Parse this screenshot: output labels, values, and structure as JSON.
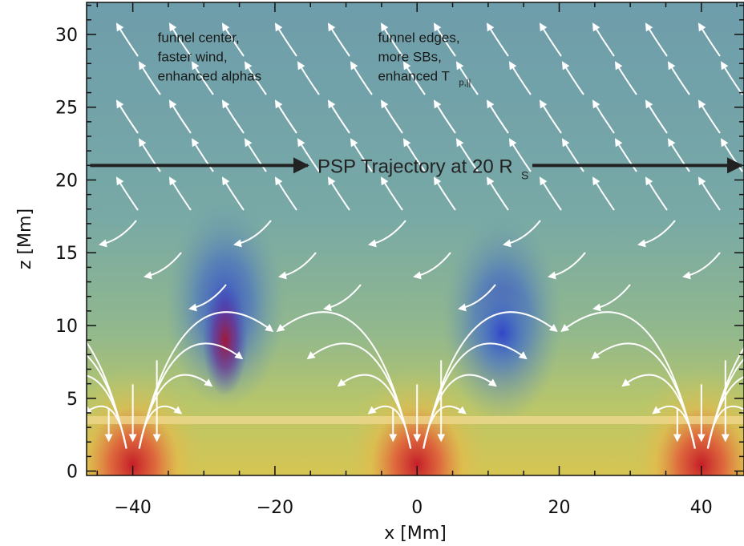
{
  "chart_data": {
    "type": "heatmap",
    "title": "",
    "xlabel": "x [Mm]",
    "ylabel": "z [Mm]",
    "xlim": [
      -46.5,
      46
    ],
    "ylim": [
      -0.3,
      32.2
    ],
    "xticks": [
      -40,
      -20,
      0,
      20,
      40
    ],
    "xtick_labels": [
      "−40",
      "−20",
      "0",
      "20",
      "40"
    ],
    "yticks": [
      0,
      5,
      10,
      15,
      20,
      25,
      30
    ],
    "ytick_labels": [
      "0",
      "5",
      "10",
      "15",
      "20",
      "25",
      "30"
    ],
    "grid": false,
    "colorbar": false,
    "background_color": "#6e9eaa",
    "hot_spots": [
      {
        "x": -40,
        "z": 1,
        "color": "#c8202a"
      },
      {
        "x": 0,
        "z": 1,
        "color": "#c8202a"
      },
      {
        "x": 40,
        "z": 1,
        "color": "#c8202a"
      },
      {
        "x": -27,
        "z": 9,
        "color": "#9a1838"
      },
      {
        "x": 12,
        "z": 9.5,
        "color": "#3040c8"
      }
    ],
    "blue_lobes": [
      {
        "x": -27,
        "z": 11.5
      },
      {
        "x": 12,
        "z": 10.5
      }
    ],
    "horizontal_band": {
      "z": 3.5,
      "color": "#f0d890"
    },
    "trajectory": {
      "z": 21,
      "x_start": -46,
      "x_end": 46,
      "label_main": "PSP Trajectory at 20 R",
      "label_sub": "S",
      "color": "#222222"
    },
    "annotations": [
      {
        "x": -36.5,
        "z": 29.8,
        "lines": [
          "funnel center,",
          "faster wind,",
          "enhanced alphas"
        ]
      },
      {
        "x": -5.5,
        "z": 29.8,
        "lines": [
          "funnel edges,",
          "more SBs,",
          "enhanced T"
        ],
        "subscript": "p,||"
      }
    ],
    "streamline_color": "#ffffff"
  }
}
